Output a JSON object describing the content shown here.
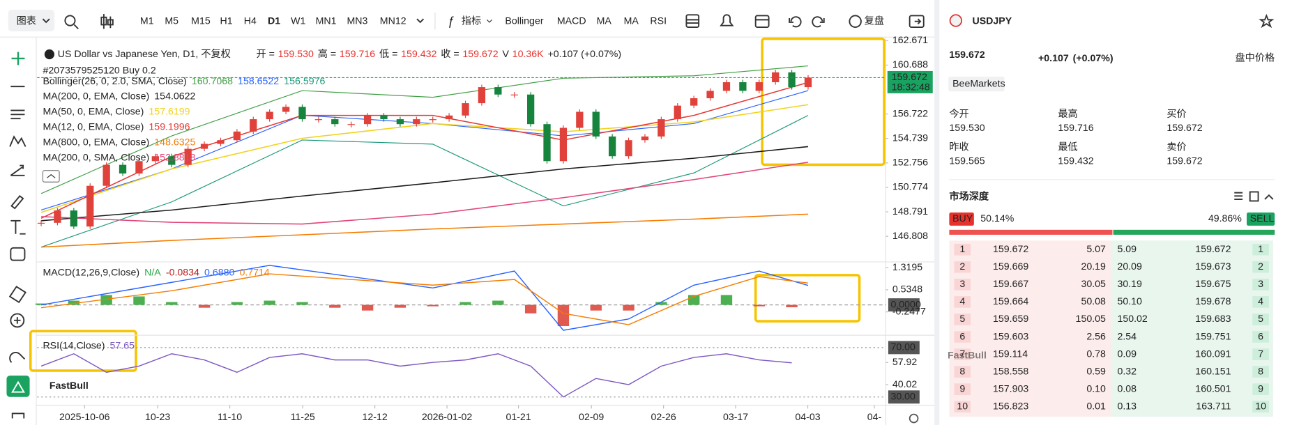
{
  "toolbar": {
    "chart_type": "图表",
    "timeframes": [
      "M1",
      "M5",
      "M15",
      "H1",
      "H4",
      "D1",
      "W1",
      "MN1",
      "MN3",
      "MN12"
    ],
    "active": "D1",
    "indicators_button": "指标",
    "indicators": [
      "Bollinger",
      "MACD",
      "MA",
      "MA",
      "RSI"
    ],
    "replay": "复盘"
  },
  "chart": {
    "symbol_title": "US Dollar vs Japanese Yen, D1, 不复权",
    "ohlc": [
      {
        "label": "开 =",
        "value": "159.530"
      },
      {
        "label": "高 =",
        "value": "159.716"
      },
      {
        "label": "低 =",
        "value": "159.432"
      },
      {
        "label": "收 =",
        "value": "159.672"
      },
      {
        "label": "V",
        "value": "10.36K"
      }
    ],
    "change": "+0.107 (+0.07%)",
    "position": "#2073579525120 Buy 0.2",
    "watermark": "FastBull",
    "xlim": [
      -0.25,
      51.76
    ],
    "xticks": [
      {
        "value": 2.66,
        "label": "2025-10-06"
      },
      {
        "value": 7.14,
        "label": "10-23"
      },
      {
        "value": 11.56,
        "label": "11-10"
      },
      {
        "value": 16.03,
        "label": "11-25"
      },
      {
        "value": 20.45,
        "label": "12-12"
      },
      {
        "value": 24.87,
        "label": "2026-01-02"
      },
      {
        "value": 29.25,
        "label": "01-21"
      },
      {
        "value": 33.72,
        "label": "02-09"
      },
      {
        "value": 38.14,
        "label": "02-26"
      },
      {
        "value": 42.56,
        "label": "03-17"
      },
      {
        "value": 46.98,
        "label": "04-03"
      },
      {
        "value": 51.06,
        "label": "04-"
      }
    ],
    "price": {
      "type": "candlestick",
      "up_color": "#e0413a",
      "down_color": "#16843d",
      "closes": [
        147.9,
        148.9,
        147.6,
        150.9,
        152.6,
        151.9,
        152.9,
        153.3,
        152.6,
        153.9,
        154.3,
        154.6,
        155.3,
        156.3,
        156.9,
        157.3,
        156.3,
        156.3,
        155.9,
        155.9,
        156.6,
        156.3,
        155.9,
        156.3,
        156.3,
        156.6,
        157.6,
        158.9,
        158.3,
        158.3,
        155.9,
        152.9,
        155.6,
        156.9,
        154.9,
        153.3,
        154.6,
        154.9,
        156.3,
        157.4,
        158.0,
        158.6,
        159.3,
        158.6,
        159.3,
        160.1,
        158.9,
        159.672
      ],
      "ylim": [
        144.73,
        162.96
      ],
      "yticks": [
        162.671,
        160.688,
        156.722,
        154.739,
        152.756,
        150.774,
        148.791,
        146.808
      ],
      "current": {
        "value": 159.672,
        "label": "159.672"
      },
      "countdown": "18:32:48",
      "current_color": "#1aa260",
      "bollinger": {
        "name": "Bollinger(26, 0, 2.0, SMA, Close)",
        "x": [
          0,
          8,
          16,
          24,
          32,
          40,
          47
        ],
        "bands": [
          {
            "last": "160.7068",
            "color": "#43a047",
            "values": [
              150.27,
              154.95,
              158.62,
              158.08,
              159.62,
              159.82,
              160.62
            ]
          },
          {
            "last": "158.6522",
            "color": "#2962ff",
            "values": [
              148.94,
              152.27,
              156.62,
              155.95,
              154.95,
              155.95,
              158.62
            ]
          },
          {
            "last": "156.5976",
            "color": "#1e9a7a",
            "values": [
              145.93,
              149.6,
              154.61,
              154.28,
              149.27,
              151.94,
              156.61
            ]
          }
        ]
      },
      "series": [
        {
          "name": "MA(200, 0, EMA, Close)",
          "last": "154.0622",
          "color": "#1a1a1a",
          "x": [
            0,
            8,
            16,
            24,
            32,
            40,
            47
          ],
          "values": [
            148.07,
            148.94,
            150.07,
            151.14,
            152.27,
            153.14,
            154.08
          ]
        },
        {
          "name": "MA(50, 0, EMA, Close)",
          "last": "157.6199",
          "color": "#f2d21b",
          "x": [
            0,
            8,
            16,
            24,
            32,
            40,
            47
          ],
          "values": [
            148.74,
            152.27,
            154.75,
            155.95,
            155.28,
            156.08,
            157.48
          ]
        },
        {
          "name": "MA(12, 0, EMA, Close)",
          "last": "159.1996",
          "color": "#e53935",
          "x": [
            0,
            8,
            16,
            24,
            32,
            40,
            47
          ],
          "values": [
            148.27,
            153.28,
            156.61,
            156.61,
            154.61,
            156.61,
            159.28
          ]
        },
        {
          "name": "MA(800, 0, EMA, Close)",
          "last": "148.6325",
          "color": "#f57c00",
          "x": [
            0,
            8,
            16,
            24,
            32,
            40,
            47
          ],
          "values": [
            145.93,
            146.47,
            146.93,
            147.4,
            147.8,
            148.2,
            148.6
          ]
        },
        {
          "name": "MA(200, 0, SMA, Close)",
          "last": "152.8818",
          "color": "#e0457b",
          "x": [
            0,
            8,
            16,
            24,
            32,
            40,
            47
          ],
          "values": [
            148.4,
            147.94,
            147.8,
            148.6,
            149.94,
            151.41,
            152.81
          ]
        }
      ]
    },
    "macd": {
      "title": "MACD(12,26,9,Close)",
      "readings": [
        {
          "text": "N/A",
          "color": "#2eaa4a"
        },
        {
          "text": "-0.0834",
          "color": "#b71c1c"
        },
        {
          "text": "0.6880",
          "color": "#2962ff"
        },
        {
          "text": "0.7714",
          "color": "#f57c00"
        }
      ],
      "ylim": [
        -1.075,
        1.523
      ],
      "yticks": [
        1.3195,
        0.5348,
        {
          "value": 0,
          "label": "0.0000"
        },
        -0.2477
      ],
      "hist_x": [
        0,
        2,
        4,
        6,
        8,
        10,
        12,
        14,
        16,
        18,
        20,
        22,
        24,
        26,
        28,
        30,
        32,
        34,
        36,
        38,
        40,
        42,
        44,
        46
      ],
      "histogram": [
        0.05,
        0.15,
        0.35,
        0.3,
        0.1,
        -0.1,
        0.1,
        0.15,
        0.1,
        -0.1,
        -0.2,
        -0.1,
        -0.05,
        0.1,
        0.15,
        -0.3,
        -0.75,
        -0.2,
        -0.2,
        0.1,
        0.35,
        0.35,
        -0.05,
        -0.0834
      ],
      "pos_color": "#4caf50",
      "neg_color": "#e05a4f",
      "lines": [
        {
          "color": "#2962ff",
          "x": [
            0,
            8,
            14,
            24,
            29,
            32,
            36,
            40,
            44,
            47
          ],
          "values": [
            0.0,
            0.8,
            1.4,
            0.6,
            1.2,
            -0.9,
            -0.5,
            0.7,
            1.2,
            0.688
          ]
        },
        {
          "color": "#f57c00",
          "x": [
            0,
            8,
            14,
            24,
            29,
            32,
            36,
            40,
            44,
            47
          ],
          "values": [
            -0.1,
            0.5,
            1.1,
            0.7,
            0.9,
            -0.3,
            -0.7,
            0.3,
            1.0,
            0.7714
          ]
        }
      ]
    },
    "rsi": {
      "title": "RSI(14,Close)",
      "last": "57.65",
      "color": "#7e57c2",
      "ylim": [
        23.33,
        80
      ],
      "yticks": [
        {
          "value": 70,
          "label": "70.00"
        },
        57.92,
        40.02,
        {
          "value": 30,
          "label": "30.00"
        }
      ],
      "x": [
        0,
        2,
        4,
        6,
        8,
        10,
        12,
        14,
        16,
        18,
        20,
        22,
        24,
        26,
        28,
        30,
        32,
        34,
        36,
        38,
        40,
        42,
        44,
        46
      ],
      "values": [
        55,
        65,
        50,
        55,
        65,
        60,
        50,
        62,
        65,
        60,
        60,
        55,
        58,
        60,
        65,
        55,
        30,
        45,
        40,
        55,
        62,
        65,
        60,
        57.65
      ]
    }
  },
  "quote": {
    "symbol": "USDJPY",
    "price": "159.672",
    "change": "+0.107",
    "change_pct": "(+0.07%)",
    "price_type": "盘中价格",
    "source": "BeeMarkets",
    "stats": [
      {
        "label": "今开",
        "value": "159.530",
        "color": "#e5322d"
      },
      {
        "label": "最高",
        "value": "159.716",
        "color": "#222222"
      },
      {
        "label": "买价",
        "value": "159.672",
        "color": "#1aa260"
      },
      {
        "label": "昨收",
        "value": "159.565",
        "color": "#222222"
      },
      {
        "label": "最低",
        "value": "159.432",
        "color": "#222222"
      },
      {
        "label": "卖价",
        "value": "159.672",
        "color": "#e5322d"
      }
    ]
  },
  "depth": {
    "title": "市场深度",
    "buy": {
      "label": "BUY",
      "value": 50.14,
      "value_label": "50.14%"
    },
    "sell": {
      "label": "SELL",
      "value": 49.86,
      "value_label": "49.86%"
    },
    "watermark": "FastBull",
    "rows": [
      {
        "level": "1",
        "bid": "159.672",
        "bid_vol": "5.07",
        "ask_vol": "5.09",
        "ask": "159.672"
      },
      {
        "level": "2",
        "bid": "159.669",
        "bid_vol": "20.19",
        "ask_vol": "20.09",
        "ask": "159.673"
      },
      {
        "level": "3",
        "bid": "159.667",
        "bid_vol": "30.05",
        "ask_vol": "30.19",
        "ask": "159.675"
      },
      {
        "level": "4",
        "bid": "159.664",
        "bid_vol": "50.08",
        "ask_vol": "50.10",
        "ask": "159.678"
      },
      {
        "level": "5",
        "bid": "159.659",
        "bid_vol": "150.05",
        "ask_vol": "150.02",
        "ask": "159.683"
      },
      {
        "level": "6",
        "bid": "159.603",
        "bid_vol": "2.56",
        "ask_vol": "2.54",
        "ask": "159.751"
      },
      {
        "level": "7",
        "bid": "159.114",
        "bid_vol": "0.78",
        "ask_vol": "0.09",
        "ask": "160.091"
      },
      {
        "level": "8",
        "bid": "158.558",
        "bid_vol": "0.59",
        "ask_vol": "0.32",
        "ask": "160.151"
      },
      {
        "level": "9",
        "bid": "157.903",
        "bid_vol": "0.10",
        "ask_vol": "0.08",
        "ask": "160.501"
      },
      {
        "level": "10",
        "bid": "156.823",
        "bid_vol": "0.01",
        "ask_vol": "0.13",
        "ask": "163.711"
      }
    ]
  }
}
